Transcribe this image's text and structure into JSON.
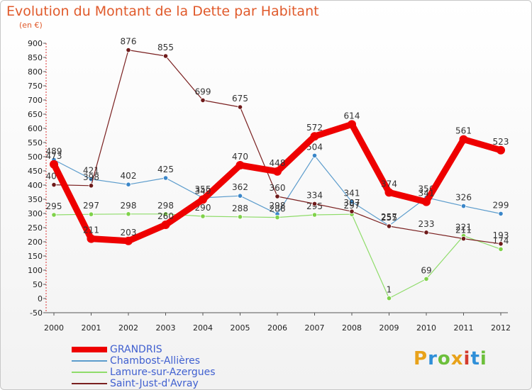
{
  "title": "Evolution du Montant de la Dette par Habitant",
  "subtitle": "(en €)",
  "logo": {
    "text": "Proxiti",
    "colors": [
      "#e8a21a",
      "#2f8fd8",
      "#6cbf3b",
      "#e8a21a",
      "#d43b2e",
      "#2f8fd8",
      "#6cbf3b"
    ]
  },
  "chart_data": {
    "type": "line",
    "title": "Evolution du Montant de la Dette par Habitant",
    "ylabel": "(en €)",
    "xlabel": "",
    "x": [
      "2000",
      "2001",
      "2002",
      "2003",
      "2004",
      "2005",
      "2006",
      "2007",
      "2008",
      "2009",
      "2010",
      "2011",
      "2012"
    ],
    "ylim": [
      -50,
      900
    ],
    "yticks": [
      -50,
      0,
      50,
      100,
      150,
      200,
      250,
      300,
      350,
      400,
      450,
      500,
      550,
      600,
      650,
      700,
      750,
      800,
      850,
      900
    ],
    "grid": false,
    "legend_position": "bottom-left",
    "series": [
      {
        "name": "GRANDRIS",
        "color": "#ee0000",
        "values": [
          473,
          211,
          203,
          260,
          349,
          470,
          448,
          572,
          614,
          374,
          341,
          561,
          523
        ]
      },
      {
        "name": "Chambost-Allières",
        "color": "#5c9ccc",
        "values": [
          489,
          421,
          402,
          425,
          355,
          362,
          298,
          504,
          341,
          257,
          356,
          326,
          299
        ]
      },
      {
        "name": "Lamure-sur-Azergues",
        "color": "#8fdc6a",
        "values": [
          295,
          297,
          298,
          298,
          290,
          288,
          286,
          295,
          297,
          1,
          69,
          221,
          174
        ]
      },
      {
        "name": "Saint-Just-d'Avray",
        "color": "#7a2020",
        "values": [
          401,
          398,
          876,
          855,
          699,
          675,
          360,
          334,
          307,
          255,
          233,
          211,
          193
        ]
      }
    ]
  }
}
